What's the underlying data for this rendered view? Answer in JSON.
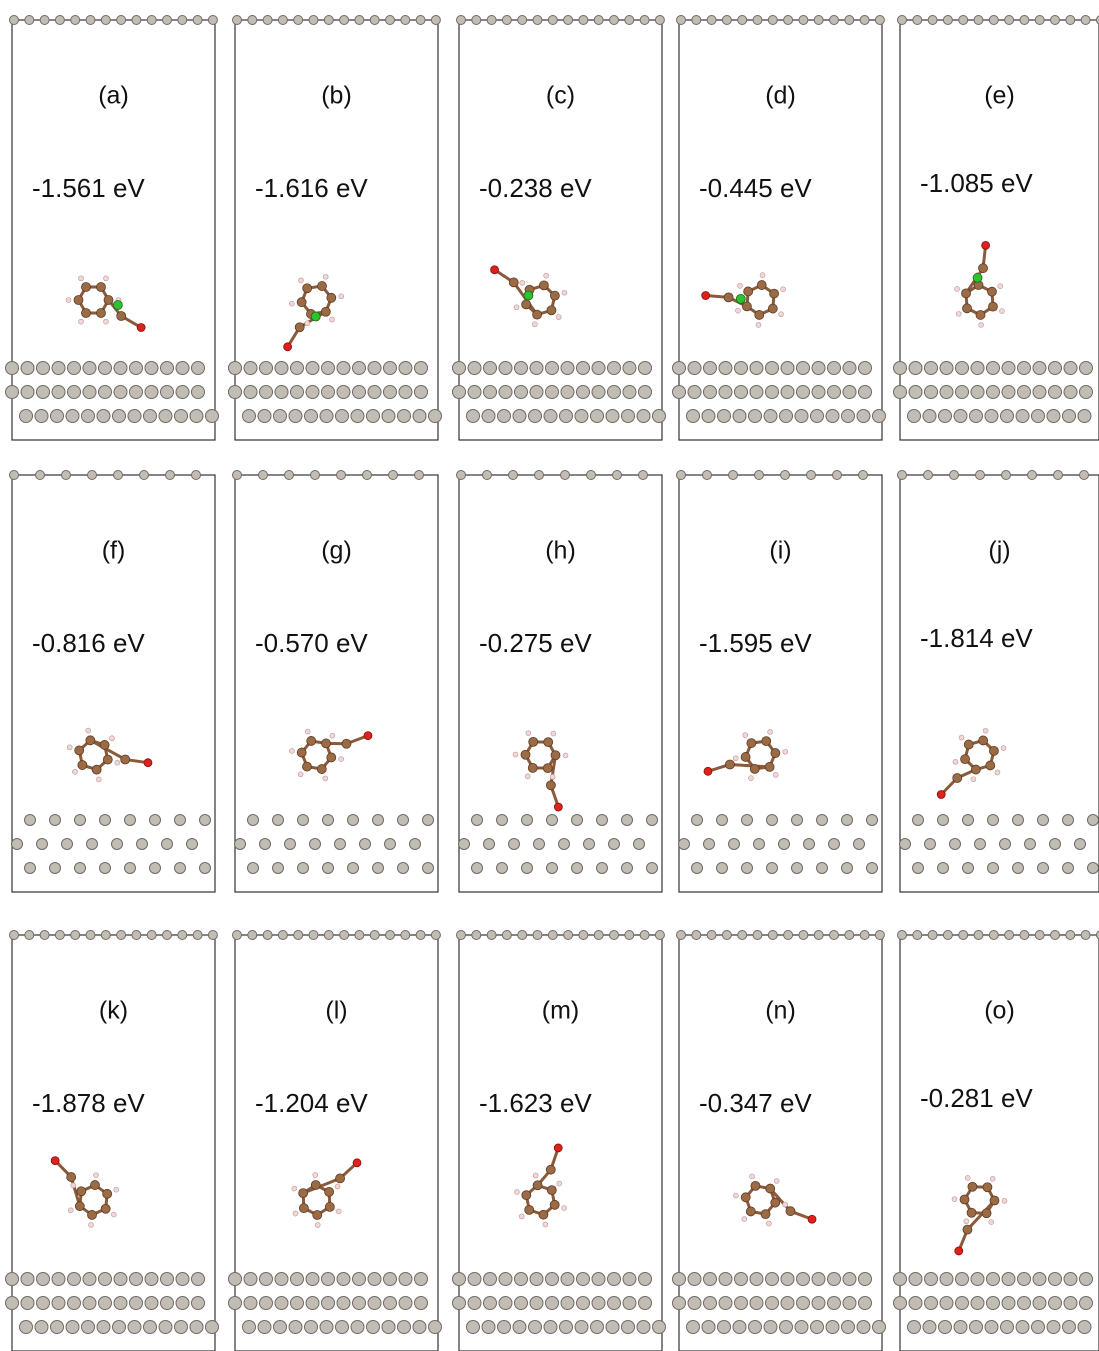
{
  "panels": [
    {
      "label": "(a)",
      "energy": "-1.561 eV"
    },
    {
      "label": "(b)",
      "energy": "-1.616 eV"
    },
    {
      "label": "(c)",
      "energy": "-0.238 eV"
    },
    {
      "label": "(d)",
      "energy": "-0.445 eV"
    },
    {
      "label": "(e)",
      "energy": "-1.085 eV"
    },
    {
      "label": "(f)",
      "energy": "-0.816 eV"
    },
    {
      "label": "(g)",
      "energy": "-0.570 eV"
    },
    {
      "label": "(h)",
      "energy": "-0.275 eV"
    },
    {
      "label": "(i)",
      "energy": "-1.595 eV"
    },
    {
      "label": "(j)",
      "energy": "-1.814 eV"
    },
    {
      "label": "(k)",
      "energy": "-1.878 eV"
    },
    {
      "label": "(l)",
      "energy": "-1.204 eV"
    },
    {
      "label": "(m)",
      "energy": "-1.623 eV"
    },
    {
      "label": "(n)",
      "energy": "-0.347 eV"
    },
    {
      "label": "(o)",
      "energy": "-0.281 eV"
    }
  ]
}
